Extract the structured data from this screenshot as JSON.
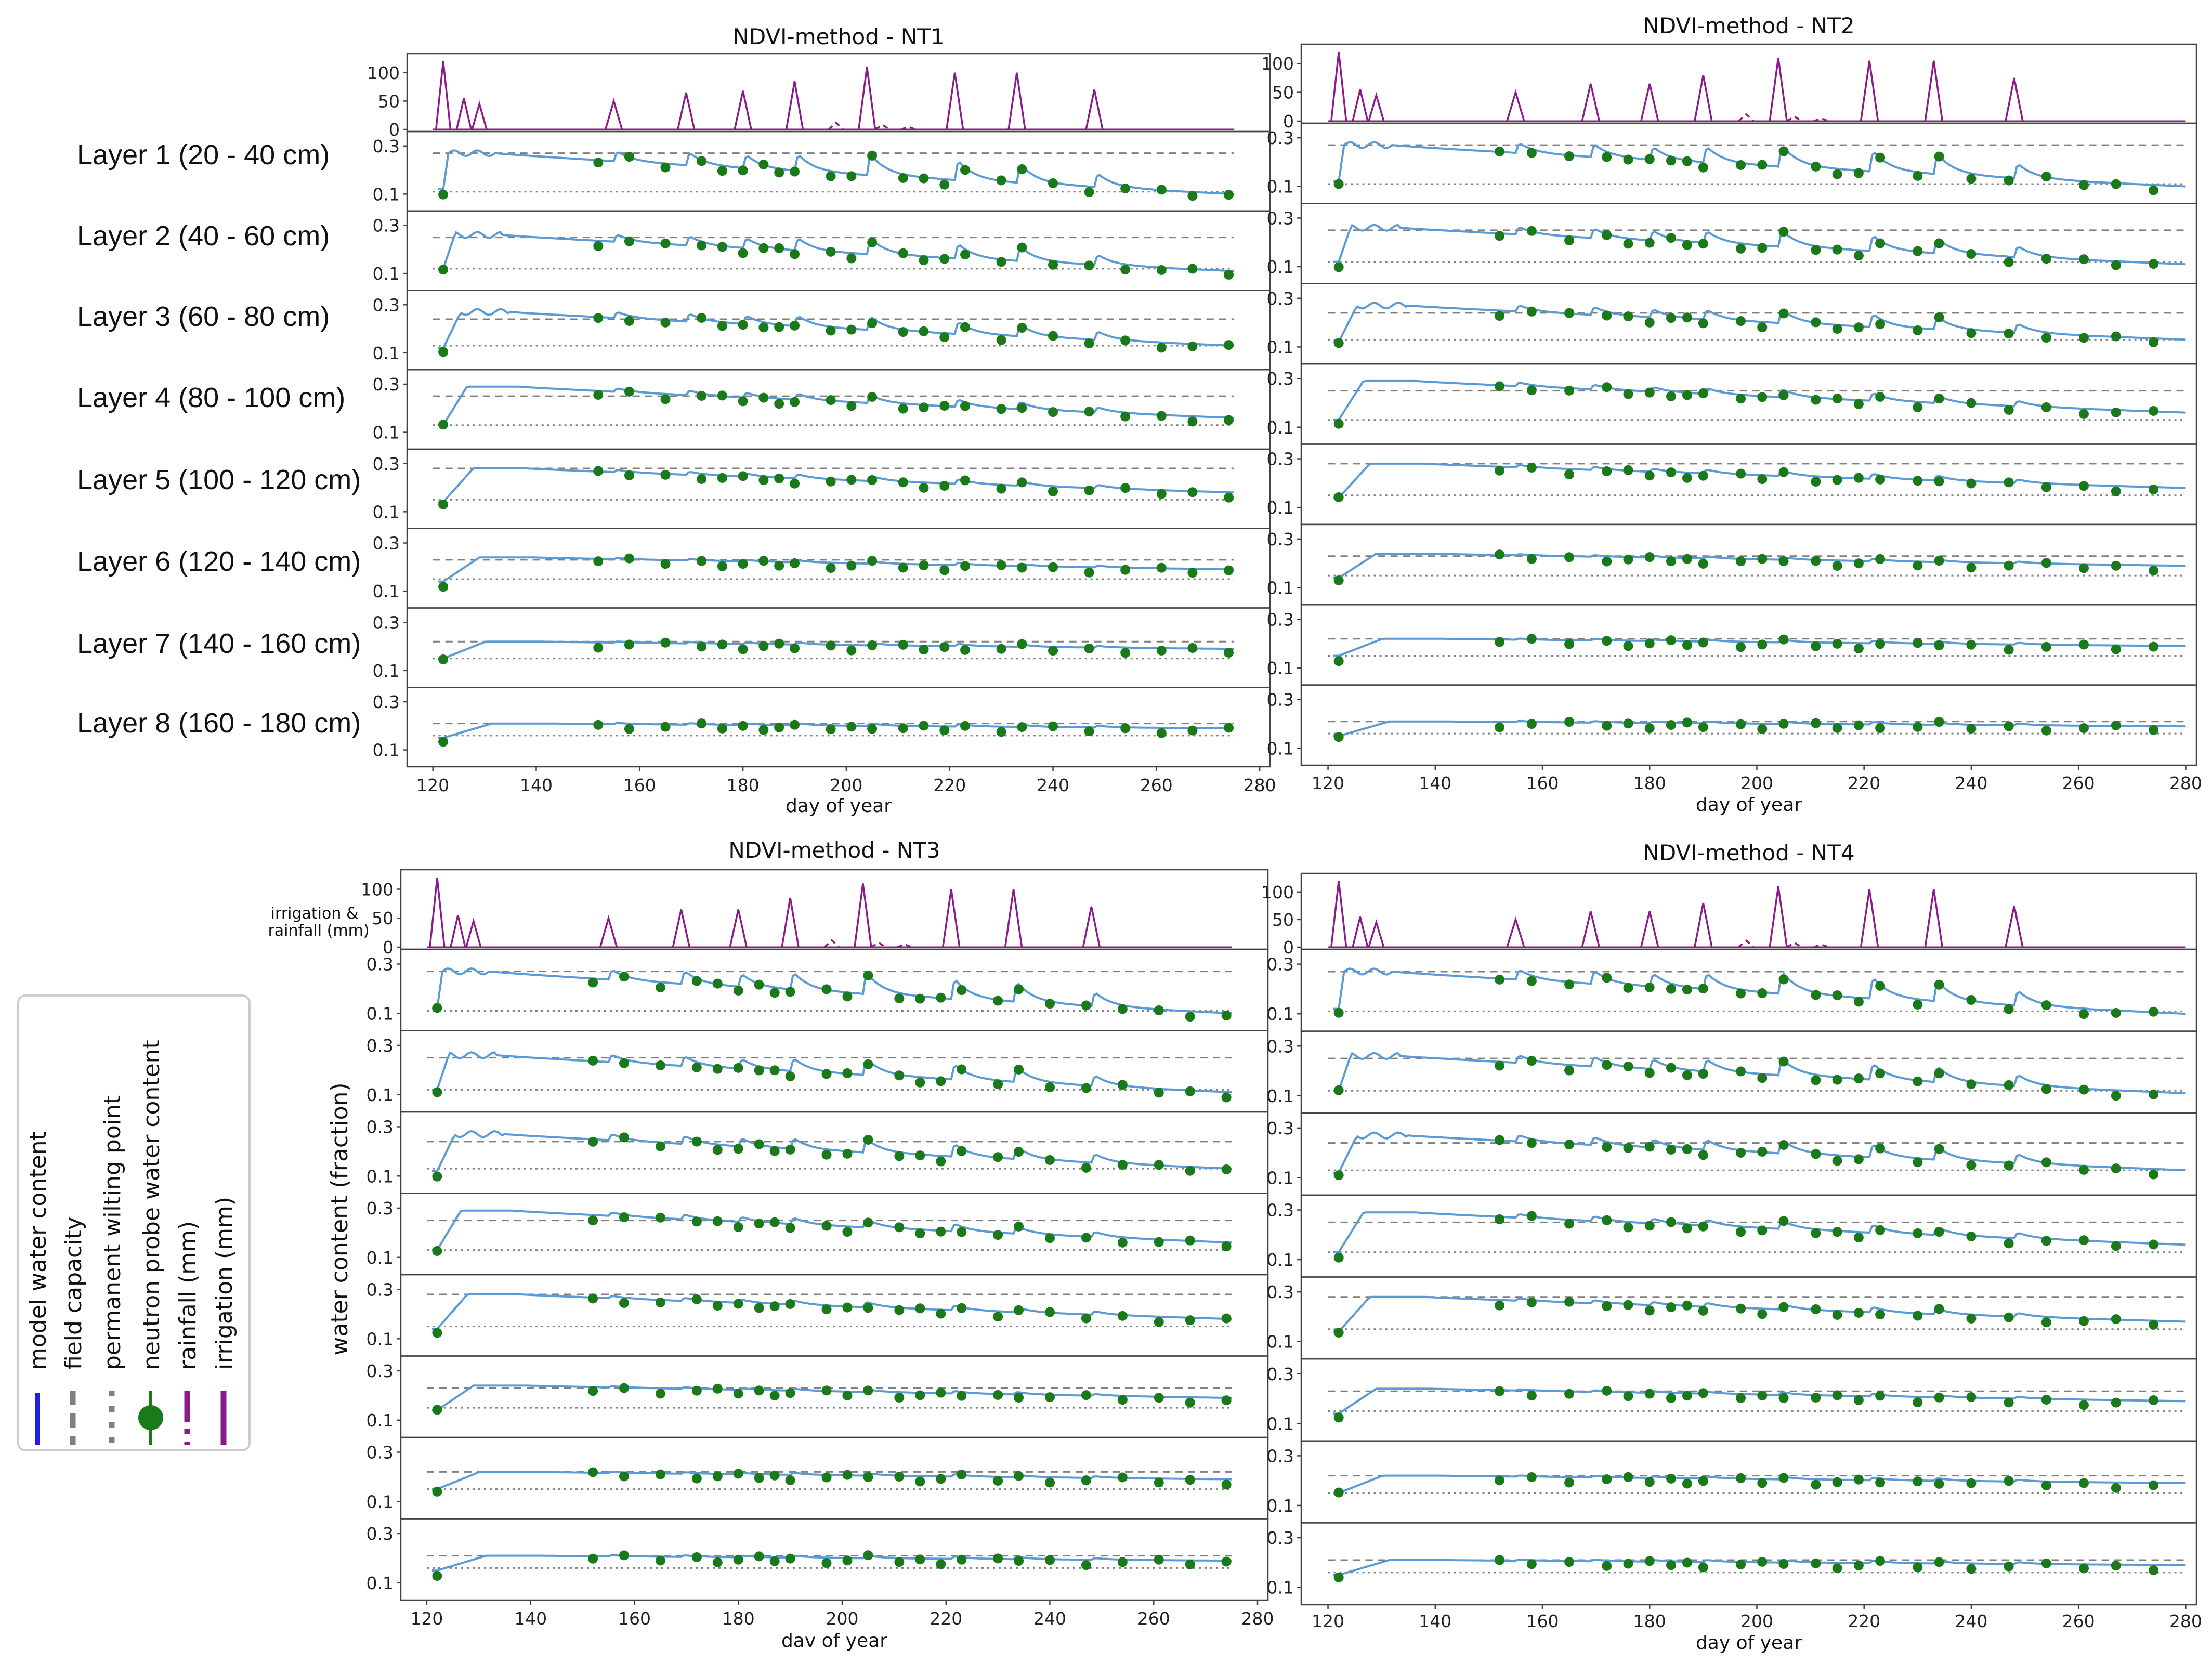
{
  "chart_data": {
    "type": "line",
    "layer_labels": [
      "Layer 1 (20 - 40 cm)",
      "Layer 2 (40 - 60 cm)",
      "Layer 3 (60 - 80 cm)",
      "Layer 4 (80 - 100 cm)",
      "Layer 5 (100 - 120 cm)",
      "Layer 6 (120 - 140 cm)",
      "Layer 7 (140 - 160 cm)",
      "Layer 8 (160 - 180 cm)"
    ],
    "xlabel_top": "day of year",
    "xlabel_bottom": "dav of year",
    "ylabel": "water content (fraction)",
    "rain_ylabel": "irrigation &\nrainfall (mm)",
    "xlim": [
      115,
      282
    ],
    "xticks": [
      120,
      140,
      160,
      180,
      200,
      220,
      240,
      260,
      280
    ],
    "rain_ylim": [
      0,
      130
    ],
    "rain_yticks": [
      0,
      50,
      100
    ],
    "layer_ylim": [
      0.03,
      0.36
    ],
    "layer_yticks": [
      0.1,
      0.3
    ],
    "legend": [
      "model water content",
      "field capacity",
      "permanent wilting point",
      "neutron probe water content",
      "rainfall (mm)",
      "irrigation (mm)"
    ],
    "colors": {
      "model": "#5b9bd5",
      "fc": "#7f7f7f",
      "pwp": "#7f7f7f",
      "probe": "#1a7a1a",
      "rain": "#8b1a8b",
      "legend_model": "#1f1fe6"
    },
    "irrigation_days_NT": [
      155,
      169,
      180,
      190,
      204,
      221,
      233,
      248
    ],
    "rain_events": [
      {
        "day": 122,
        "mm": 120
      },
      {
        "day": 126,
        "mm": 55
      },
      {
        "day": 129,
        "mm": 45
      },
      {
        "day": 198,
        "mm": 12
      },
      {
        "day": 207,
        "mm": 8
      },
      {
        "day": 212,
        "mm": 5
      }
    ],
    "panels": [
      {
        "title": "NDVI-method - NT1",
        "show_layer_labels": true,
        "irrigation_mm": [
          50,
          65,
          68,
          85,
          110,
          100,
          100,
          70
        ],
        "xlim_end": 275
      },
      {
        "title": "NDVI-method - NT2",
        "show_layer_labels": false,
        "irrigation_mm": [
          50,
          65,
          65,
          80,
          110,
          105,
          105,
          75
        ],
        "xlim_end": 280
      },
      {
        "title": "NDVI-method - NT3",
        "show_layer_labels": false,
        "irrigation_mm": [
          50,
          65,
          65,
          85,
          110,
          100,
          100,
          70
        ],
        "xlim_end": 275
      },
      {
        "title": "NDVI-method - NT4",
        "show_layer_labels": false,
        "irrigation_mm": [
          50,
          65,
          65,
          80,
          110,
          105,
          105,
          75
        ],
        "xlim_end": 280
      }
    ],
    "layers": [
      {
        "fc": 0.27,
        "pwp": 0.11,
        "start": 0.12,
        "plateau": 0.27,
        "decline_to": 0.1,
        "irr_amp": 0.08,
        "probe_offset": 0.0
      },
      {
        "fc": 0.25,
        "pwp": 0.12,
        "start": 0.12,
        "plateau": 0.26,
        "decline_to": 0.11,
        "irr_amp": 0.06,
        "probe_offset": 0.0
      },
      {
        "fc": 0.24,
        "pwp": 0.13,
        "start": 0.12,
        "plateau": 0.27,
        "decline_to": 0.13,
        "irr_amp": 0.05,
        "probe_offset": 0.0
      },
      {
        "fc": 0.25,
        "pwp": 0.13,
        "start": 0.13,
        "plateau": 0.29,
        "decline_to": 0.16,
        "irr_amp": 0.03,
        "probe_offset": 0.0
      },
      {
        "fc": 0.28,
        "pwp": 0.15,
        "start": 0.14,
        "plateau": 0.28,
        "decline_to": 0.18,
        "irr_amp": 0.02,
        "probe_offset": 0.0
      },
      {
        "fc": 0.23,
        "pwp": 0.15,
        "start": 0.14,
        "plateau": 0.24,
        "decline_to": 0.19,
        "irr_amp": 0.01,
        "probe_offset": 0.0
      },
      {
        "fc": 0.22,
        "pwp": 0.15,
        "start": 0.15,
        "plateau": 0.22,
        "decline_to": 0.19,
        "irr_amp": 0.01,
        "probe_offset": 0.0
      },
      {
        "fc": 0.21,
        "pwp": 0.16,
        "start": 0.15,
        "plateau": 0.21,
        "decline_to": 0.19,
        "irr_amp": 0.01,
        "probe_offset": 0.0
      }
    ],
    "probe_days": [
      122,
      152,
      158,
      165,
      172,
      176,
      180,
      184,
      187,
      190,
      197,
      201,
      205,
      211,
      215,
      219,
      223,
      230,
      234,
      240,
      247,
      254,
      261,
      267,
      274
    ]
  }
}
